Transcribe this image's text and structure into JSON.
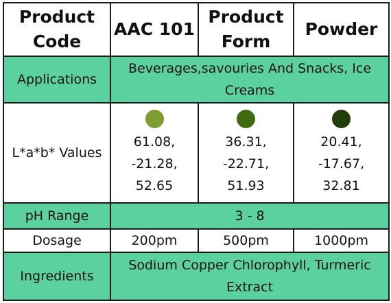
{
  "header": {
    "product_code_label": "Product Code",
    "product_code_value": "AAC 101",
    "product_form_label": "Product Form",
    "product_form_value": "Powder"
  },
  "rows": {
    "applications": {
      "label": "Applications",
      "value": "Beverages,savouries And Snacks, Ice Creams"
    },
    "lab_values": {
      "label": "L*a*b* Values",
      "samples": [
        {
          "color": "#7d9d2e",
          "L": "61.08,",
          "a": "-21.28,",
          "b": "52.65"
        },
        {
          "color": "#3e6b0d",
          "L": "36.31,",
          "a": "-22.71,",
          "b": "51.93"
        },
        {
          "color": "#213e0a",
          "L": "20.41,",
          "a": "-17.67,",
          "b": "32.81"
        }
      ]
    },
    "ph_range": {
      "label": "pH Range",
      "value": "3 - 8"
    },
    "dosage": {
      "label": "Dosage",
      "values": [
        "200pm",
        "500pm",
        "1000pm"
      ]
    },
    "ingredients": {
      "label": "Ingredients",
      "value": "Sodium Copper Chlorophyll, Turmeric Extract"
    }
  },
  "colors": {
    "row_accent": "#5cd1a0",
    "border": "#1a1a1a"
  }
}
